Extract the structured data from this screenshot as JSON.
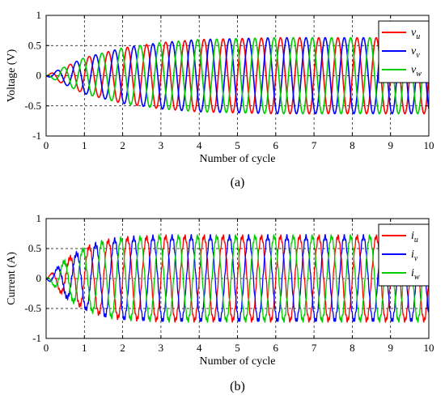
{
  "chart_data": [
    {
      "type": "line",
      "panel_label": "(a)",
      "xlabel": "Number of cycle",
      "ylabel": "Voltage (V)",
      "xlim": [
        0,
        10
      ],
      "ylim": [
        -1,
        1
      ],
      "x_ticks": [
        0,
        1,
        2,
        3,
        4,
        5,
        6,
        7,
        8,
        9,
        10
      ],
      "y_ticks": [
        -1,
        -0.5,
        0,
        0.5,
        1
      ],
      "x_tick_labels": [
        "0",
        "1",
        "2",
        "3",
        "4",
        "5",
        "6",
        "7",
        "8",
        "9",
        "10"
      ],
      "y_tick_labels": [
        "-1",
        "-0.5",
        "0",
        "0.5",
        "1"
      ],
      "grid": "dashed",
      "legend_position": "top-right",
      "cycles_per_unit": 2,
      "envelope": {
        "x": [
          0,
          1,
          2,
          3,
          4,
          6,
          10
        ],
        "amplitude": [
          0,
          0.3,
          0.46,
          0.55,
          0.6,
          0.63,
          0.63
        ]
      },
      "ripple": 0,
      "series": [
        {
          "name": "v",
          "subscript": "u",
          "color": "#ff0000",
          "phase_deg": 0
        },
        {
          "name": "v",
          "subscript": "v",
          "color": "#0000ff",
          "phase_deg": -120
        },
        {
          "name": "v",
          "subscript": "w",
          "color": "#00cc00",
          "phase_deg": 120
        }
      ]
    },
    {
      "type": "line",
      "panel_label": "(b)",
      "xlabel": "Number of cycle",
      "ylabel": "Current (A)",
      "xlim": [
        0,
        10
      ],
      "ylim": [
        -1,
        1
      ],
      "x_ticks": [
        0,
        1,
        2,
        3,
        4,
        5,
        6,
        7,
        8,
        9,
        10
      ],
      "y_ticks": [
        -1,
        -0.5,
        0,
        0.5,
        1
      ],
      "x_tick_labels": [
        "0",
        "1",
        "2",
        "3",
        "4",
        "5",
        "6",
        "7",
        "8",
        "9",
        "10"
      ],
      "y_tick_labels": [
        "-1",
        "-0.5",
        "0",
        "0.5",
        "1"
      ],
      "grid": "dashed",
      "legend_position": "top-right",
      "cycles_per_unit": 2,
      "envelope": {
        "x": [
          0,
          0.5,
          1,
          1.5,
          2,
          3,
          10
        ],
        "amplitude": [
          0,
          0.3,
          0.5,
          0.62,
          0.67,
          0.7,
          0.7
        ]
      },
      "ripple": 0.035,
      "series": [
        {
          "name": "i",
          "subscript": "u",
          "color": "#ff0000",
          "phase_deg": 0
        },
        {
          "name": "i",
          "subscript": "v",
          "color": "#0000ff",
          "phase_deg": -120
        },
        {
          "name": "i",
          "subscript": "w",
          "color": "#00cc00",
          "phase_deg": 120
        }
      ]
    }
  ]
}
